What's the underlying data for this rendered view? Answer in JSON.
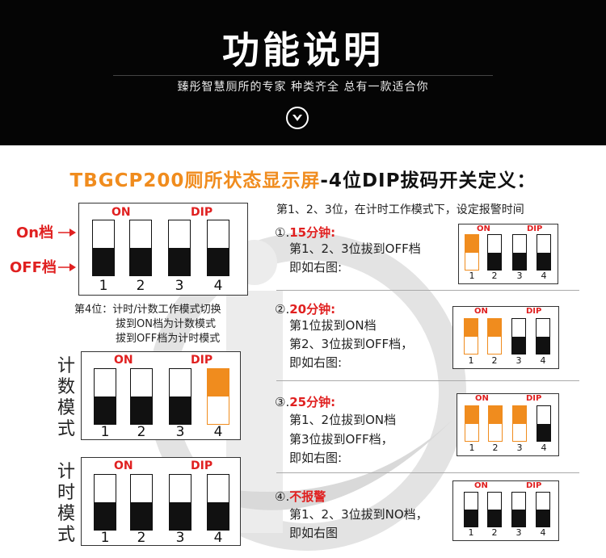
{
  "header": {
    "title": "功能说明",
    "subtitle": "臻彤智慧厕所的专家  种类齐全  总有一款适合你"
  },
  "main_title": {
    "part1": "TBGCP200厕所状态显示屏",
    "part2": "-4位DIP拔码开关定义："
  },
  "left": {
    "on_label": "On档",
    "off_label": "OFF档",
    "panel_on": "ON",
    "panel_dip": "DIP",
    "numbers": [
      "1",
      "2",
      "3",
      "4"
    ],
    "note_line1": "第4位：计时/计数工作模式切换",
    "note_line2": "拔到ON档为计数模式",
    "note_line3": "拔到OFF档为计时模式",
    "count_mode": [
      "计",
      "数",
      "模",
      "式"
    ],
    "timer_mode": [
      "计",
      "时",
      "模",
      "式"
    ]
  },
  "right": {
    "intro": "第1、2、3位，在计时工作模式下，设定报警时间",
    "s1": {
      "idx": "①.",
      "title": "15分钟:",
      "line1": "第1、2、3位拔到OFF档",
      "line2": "即如右图:"
    },
    "s2": {
      "idx": "②.",
      "title": "20分钟:",
      "line1": "第1位拔到ON档",
      "line2": "第2、3位拔到OFF档，",
      "line3": "即如右图:"
    },
    "s3": {
      "idx": "③.",
      "title": "25分钟:",
      "line1": "第1、2位拔到ON档",
      "line2": "第3位拔到OFF档，",
      "line3": "即如右图:"
    },
    "s4": {
      "idx": "④.",
      "title": "不报警",
      "line1": "第1、2、3位拔到NO档，",
      "line2": "即如右图"
    }
  },
  "colors": {
    "accent": "#f08c1e",
    "red": "#e02020",
    "header_bg": "#050505"
  }
}
